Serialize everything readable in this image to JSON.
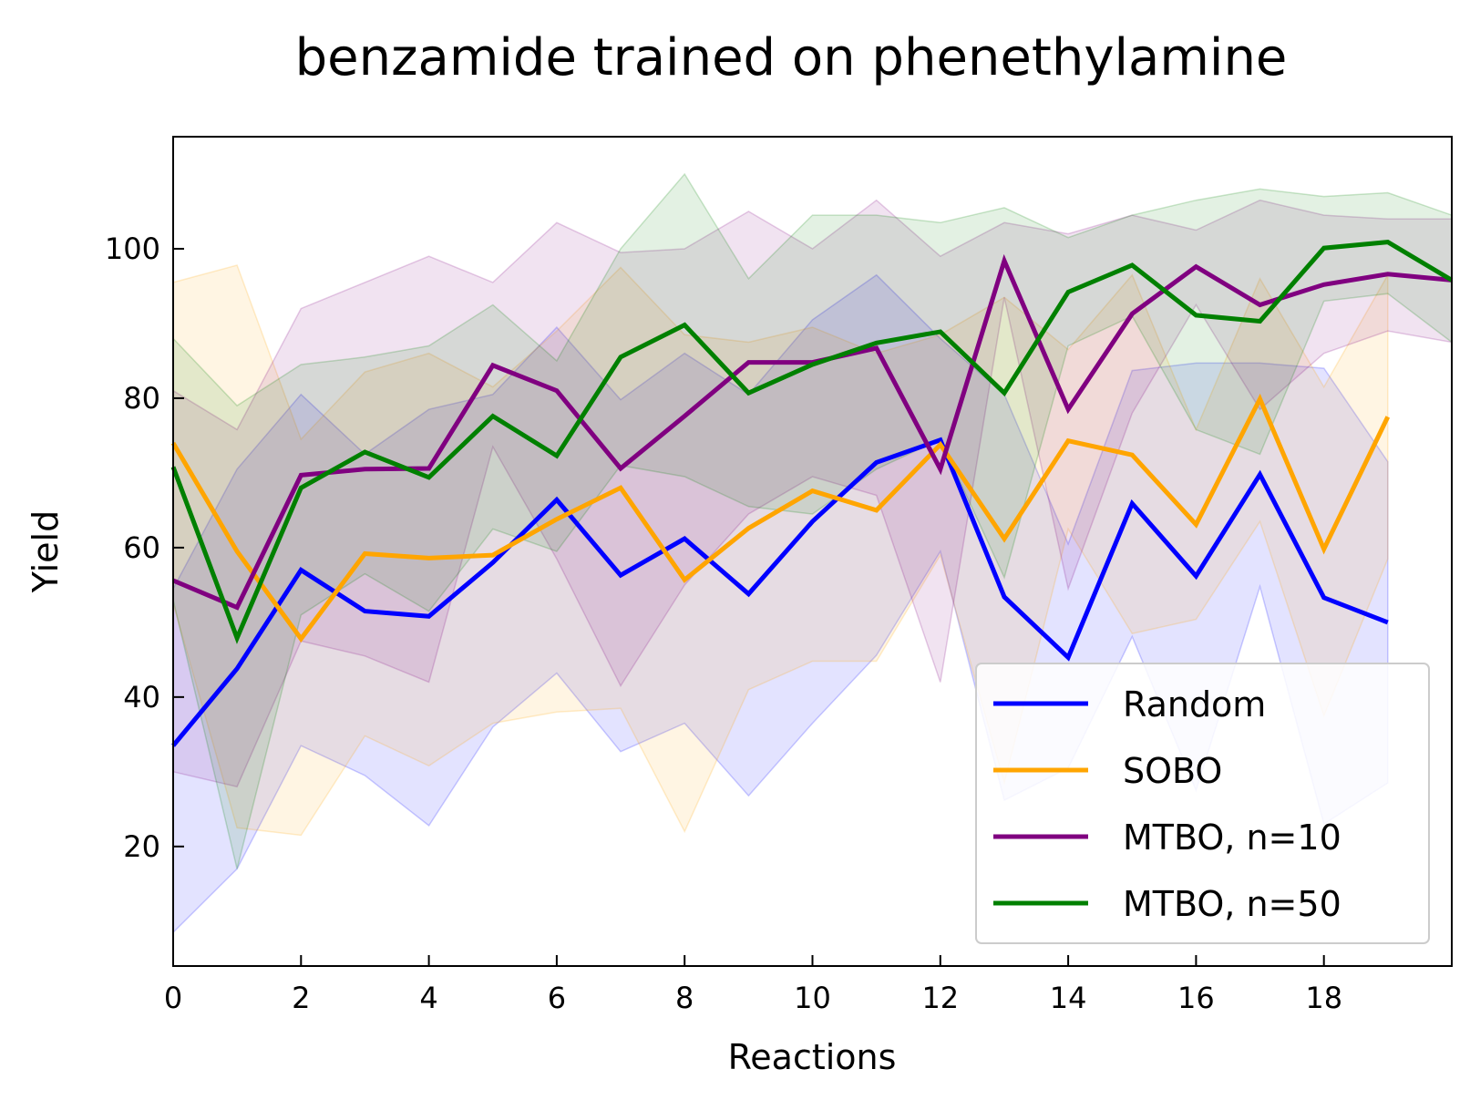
{
  "chart_data": {
    "type": "line",
    "title": "benzamide trained on phenethylamine",
    "xlabel": "Reactions",
    "ylabel": "Yield",
    "xlim": [
      0,
      20
    ],
    "ylim": [
      4,
      115
    ],
    "xticks": [
      0,
      2,
      4,
      6,
      8,
      10,
      12,
      14,
      16,
      18
    ],
    "yticks": [
      20,
      40,
      60,
      80,
      100
    ],
    "grid": false,
    "legend_position": "lower right",
    "series": [
      {
        "name": "Random",
        "color": "#0000ff",
        "x": [
          0,
          1,
          2,
          3,
          4,
          5,
          6,
          7,
          8,
          9,
          10,
          11,
          12,
          13,
          14,
          15,
          16,
          17,
          18,
          19
        ],
        "y": [
          33.5,
          43.8,
          57.0,
          51.5,
          50.8,
          58.0,
          66.4,
          56.3,
          61.2,
          53.8,
          63.5,
          71.4,
          74.4,
          53.4,
          45.3,
          65.9,
          56.2,
          69.8,
          53.3,
          50.0
        ],
        "upper": [
          54.5,
          70.5,
          80.5,
          72.5,
          78.5,
          80.5,
          89.5,
          79.8,
          86.0,
          80.5,
          90.5,
          96.5,
          88.0,
          80.5,
          60.5,
          83.7,
          84.7,
          84.7,
          84.0,
          71.5
        ],
        "lower": [
          8.5,
          17.0,
          33.5,
          29.5,
          22.8,
          36.0,
          43.2,
          32.7,
          36.5,
          26.8,
          36.5,
          45.6,
          59.5,
          26.2,
          30.5,
          48.1,
          27.5,
          54.8,
          23.0,
          28.5
        ]
      },
      {
        "name": "SOBO",
        "color": "#ffa500",
        "x": [
          0,
          1,
          2,
          3,
          4,
          5,
          6,
          7,
          8,
          9,
          10,
          11,
          12,
          13,
          14,
          15,
          16,
          17,
          18,
          19
        ],
        "y": [
          74.0,
          59.5,
          47.8,
          59.2,
          58.6,
          59.0,
          63.8,
          68.0,
          55.7,
          62.6,
          67.6,
          65.0,
          73.8,
          61.2,
          74.3,
          72.4,
          63.1,
          79.9,
          59.8,
          77.5
        ],
        "upper": [
          95.5,
          97.8,
          74.5,
          83.5,
          86.0,
          81.5,
          89.0,
          97.5,
          88.5,
          87.5,
          89.5,
          86.0,
          88.5,
          93.5,
          86.5,
          96.5,
          75.8,
          96.0,
          81.5,
          96.5
        ],
        "lower": [
          52.5,
          22.5,
          21.5,
          34.8,
          30.8,
          36.5,
          38.0,
          38.5,
          22.0,
          41.0,
          44.8,
          44.8,
          59.0,
          28.5,
          62.5,
          48.5,
          50.4,
          63.5,
          37.5,
          58.5
        ]
      },
      {
        "name": "MTBO, n=10",
        "color": "#800080",
        "x": [
          0,
          1,
          2,
          3,
          4,
          5,
          6,
          7,
          8,
          9,
          10,
          11,
          12,
          13,
          14,
          15,
          16,
          17,
          18,
          19,
          20
        ],
        "y": [
          55.6,
          52.0,
          69.7,
          70.5,
          70.6,
          84.4,
          81.0,
          70.6,
          77.6,
          84.8,
          84.8,
          86.7,
          70.5,
          98.4,
          78.5,
          91.3,
          97.6,
          92.5,
          95.2,
          96.6,
          95.8
        ],
        "upper": [
          81.0,
          75.8,
          92.0,
          95.5,
          99.0,
          95.5,
          103.5,
          99.5,
          100.0,
          105.0,
          100.0,
          106.5,
          99.0,
          103.5,
          102.0,
          104.5,
          102.5,
          106.5,
          104.5,
          104.0,
          104.0
        ],
        "lower": [
          30.0,
          28.0,
          47.5,
          45.5,
          42.0,
          73.5,
          58.5,
          41.5,
          55.0,
          64.5,
          69.5,
          67.0,
          42.0,
          93.5,
          54.5,
          78.0,
          92.5,
          78.5,
          86.0,
          89.0,
          87.5
        ]
      },
      {
        "name": "MTBO, n=50",
        "color": "#008000",
        "x": [
          0,
          1,
          2,
          3,
          4,
          5,
          6,
          7,
          8,
          9,
          10,
          11,
          12,
          13,
          14,
          15,
          16,
          17,
          18,
          19,
          20
        ],
        "y": [
          70.8,
          47.9,
          68.0,
          72.8,
          69.4,
          77.6,
          72.3,
          85.5,
          89.8,
          80.7,
          84.5,
          87.4,
          88.9,
          80.7,
          94.2,
          97.8,
          91.1,
          90.3,
          100.1,
          100.9,
          95.8
        ],
        "upper": [
          88.0,
          79.0,
          84.5,
          85.5,
          87.0,
          92.5,
          85.0,
          100.0,
          110.0,
          96.0,
          104.5,
          104.5,
          103.5,
          105.5,
          101.5,
          104.5,
          106.5,
          108.0,
          107.0,
          107.5,
          104.5
        ],
        "lower": [
          53.0,
          17.0,
          51.0,
          56.5,
          51.5,
          62.5,
          59.5,
          71.0,
          69.5,
          65.5,
          64.5,
          70.5,
          74.5,
          56.0,
          87.0,
          91.0,
          75.8,
          72.5,
          93.0,
          94.0,
          87.5
        ]
      }
    ]
  }
}
